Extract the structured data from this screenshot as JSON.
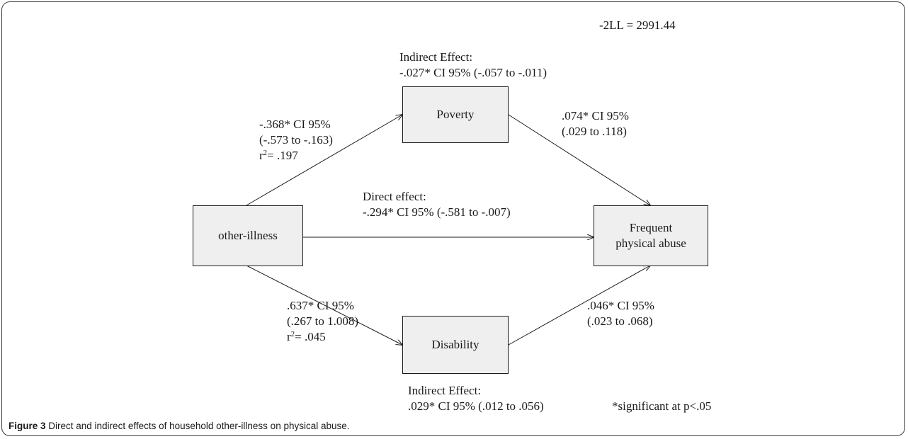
{
  "fit_stat": "-2LL = 2991.44",
  "nodes": {
    "poverty": "Poverty",
    "other_illness": "other-illness",
    "disability": "Disability",
    "outcome_line1": "Frequent",
    "outcome_line2": "physical abuse"
  },
  "paths": {
    "illness_to_poverty": {
      "line1": "-.368* CI 95%",
      "line2": "(-.573 to -.163)",
      "r_prefix": "r",
      "r_sup": "2",
      "r_value": "= .197"
    },
    "poverty_to_abuse": {
      "line1": ".074* CI 95%",
      "line2": "(.029 to .118)"
    },
    "direct": {
      "line1": "Direct effect:",
      "line2": "-.294* CI 95% (-.581 to -.007)"
    },
    "illness_to_disability": {
      "line1": ".637* CI 95%",
      "line2": "(.267 to 1.008)",
      "r_prefix": "r",
      "r_sup": "2",
      "r_value": "= .045"
    },
    "disability_to_abuse": {
      "line1": ".046* CI 95%",
      "line2": "(.023 to .068)"
    }
  },
  "indirect_poverty": {
    "line1": "Indirect Effect:",
    "line2": "-.027* CI 95% (-.057 to -.011)"
  },
  "indirect_disability": {
    "line1": "Indirect Effect:",
    "line2": ".029* CI 95% (.012 to .056)"
  },
  "significance_note": "*significant at p<.05",
  "caption": {
    "label": "Figure 3",
    "text": " Direct and indirect effects of household other-illness on physical abuse."
  }
}
